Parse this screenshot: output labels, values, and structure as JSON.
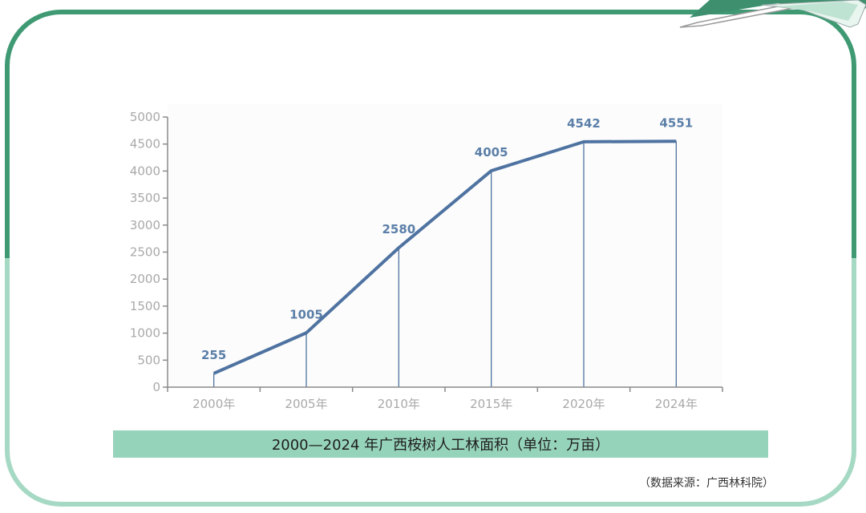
{
  "chart_data": {
    "type": "line",
    "title": "2000—2024 年广西桉树人工林面积（单位：万亩）",
    "categories": [
      "2000年",
      "2005年",
      "2010年",
      "2015年",
      "2020年",
      "2024年"
    ],
    "values": [
      255,
      1005,
      2580,
      4005,
      4542,
      4551
    ],
    "data_labels": [
      "255",
      "1005",
      "2580",
      "4005",
      "4542",
      "4551"
    ],
    "ylim": [
      0,
      5000
    ],
    "yticks": [
      "0",
      "500",
      "1000",
      "1500",
      "2000",
      "2500",
      "3000",
      "3500",
      "4000",
      "4500",
      "5000"
    ],
    "ytick_values": [
      0,
      500,
      1000,
      1500,
      2000,
      2500,
      3000,
      3500,
      4000,
      4500,
      5000
    ],
    "grid": false,
    "drop_lines": true,
    "line_color": "#4f73a1"
  },
  "source_note": "（数据来源：广西林科院）",
  "colors": {
    "frame_dark": "#3f9a74",
    "frame_light": "#a6d9c4",
    "caption_band": "#96d3bb",
    "axis": "#8a8a8a"
  }
}
